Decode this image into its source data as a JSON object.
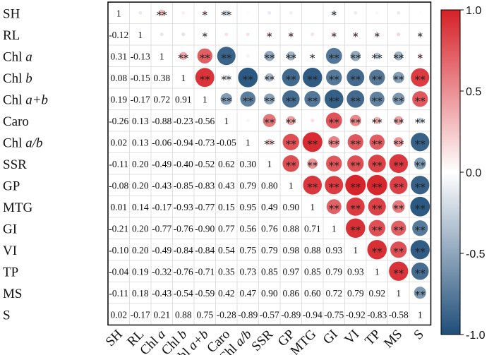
{
  "chart_data": {
    "type": "heatmap",
    "variables": [
      "SH",
      "RL",
      "Chl a",
      "Chl b",
      "Chl a+b",
      "Caro",
      "Chl a/b",
      "SSR",
      "GP",
      "MTG",
      "GI",
      "VI",
      "TP",
      "MS",
      "S"
    ],
    "row_labels": [
      "SH",
      "RL",
      "Chl a",
      "Chl b",
      "Chl a+b",
      "Caro",
      "Chl a/b",
      "SSR",
      "GP",
      "MTG",
      "GI",
      "VI",
      "TP",
      "MS",
      "S"
    ],
    "col_labels": [
      "SH",
      "RL",
      "Chl a",
      "Chl b",
      "Chl a+b",
      "Caro",
      "Chl a/b",
      "SSR",
      "GP",
      "MTG",
      "GI",
      "VI",
      "TP",
      "MS",
      "S"
    ],
    "lower_text": [
      [
        "1",
        "",
        "",
        "",
        "",
        "",
        "",
        "",
        "",
        "",
        "",
        "",
        "",
        "",
        ""
      ],
      [
        "-0.12",
        "1",
        "",
        "",
        "",
        "",
        "",
        "",
        "",
        "",
        "",
        "",
        "",
        "",
        ""
      ],
      [
        "0.31",
        "-0.13",
        "1",
        "",
        "",
        "",
        "",
        "",
        "",
        "",
        "",
        "",
        "",
        "",
        ""
      ],
      [
        "0.08",
        "-0.15",
        "0.38",
        "1",
        "",
        "",
        "",
        "",
        "",
        "",
        "",
        "",
        "",
        "",
        ""
      ],
      [
        "0.19",
        "-0.17",
        "0.72",
        "0.91",
        "1",
        "",
        "",
        "",
        "",
        "",
        "",
        "",
        "",
        "",
        ""
      ],
      [
        "-0.26",
        "0.13",
        "-0.88",
        "-0.23",
        "-0.56",
        "1",
        "",
        "",
        "",
        "",
        "",
        "",
        "",
        "",
        ""
      ],
      [
        "0.02",
        "0.13",
        "-0.06",
        "-0.94",
        "-0.73",
        "-0.05",
        "1",
        "",
        "",
        "",
        "",
        "",
        "",
        "",
        ""
      ],
      [
        "-0.11",
        "0.20",
        "-0.49",
        "-0.40",
        "-0.52",
        "0.62",
        "0.30",
        "1",
        "",
        "",
        "",
        "",
        "",
        "",
        ""
      ],
      [
        "-0.08",
        "0.20",
        "-0.43",
        "-0.85",
        "-0.83",
        "0.43",
        "0.79",
        "0.80",
        "1",
        "",
        "",
        "",
        "",
        "",
        ""
      ],
      [
        "0.01",
        "0.14",
        "-0.17",
        "-0.93",
        "-0.77",
        "0.15",
        "0.95",
        "0.49",
        "0.90",
        "1",
        "",
        "",
        "",
        "",
        ""
      ],
      [
        "-0.21",
        "0.20",
        "-0.77",
        "-0.76",
        "-0.90",
        "0.77",
        "0.56",
        "0.76",
        "0.88",
        "0.71",
        "1",
        "",
        "",
        "",
        ""
      ],
      [
        "-0.10",
        "0.20",
        "-0.49",
        "-0.84",
        "-0.84",
        "0.54",
        "0.75",
        "0.79",
        "0.98",
        "0.88",
        "0.93",
        "1",
        "",
        "",
        ""
      ],
      [
        "-0.04",
        "0.19",
        "-0.32",
        "-0.76",
        "-0.71",
        "0.35",
        "0.73",
        "0.85",
        "0.97",
        "0.85",
        "0.79",
        "0.93",
        "1",
        "",
        ""
      ],
      [
        "-0.11",
        "0.18",
        "-0.43",
        "-0.54",
        "-0.59",
        "0.42",
        "0.47",
        "0.90",
        "0.86",
        "0.60",
        "0.72",
        "0.79",
        "0.92",
        "1",
        ""
      ],
      [
        "0.02",
        "-0.17",
        "0.21",
        "0.88",
        "0.75",
        "-0.28",
        "-0.89",
        "-0.57",
        "-0.89",
        "-0.94",
        "-0.75",
        "-0.92",
        "-0.83",
        "-0.58",
        "1"
      ]
    ],
    "upper_stars": [
      [
        "",
        "",
        "**",
        "",
        "*",
        "**",
        "",
        "",
        "",
        "",
        "*",
        "",
        "",
        "",
        ""
      ],
      [
        "",
        "",
        "",
        "",
        "*",
        "",
        "",
        "*",
        "*",
        "",
        "*",
        "*",
        "*",
        "",
        "*"
      ],
      [
        "",
        "",
        "",
        "**",
        "**",
        "**",
        "",
        "**",
        "**",
        "*",
        "**",
        "**",
        "**",
        "**",
        "*"
      ],
      [
        "",
        "",
        "",
        "",
        "**",
        "**",
        "**",
        "**",
        "**",
        "**",
        "**",
        "**",
        "**",
        "**",
        "**"
      ],
      [
        "",
        "",
        "",
        "",
        "",
        "**",
        "**",
        "**",
        "**",
        "**",
        "**",
        "**",
        "**",
        "**",
        "**"
      ],
      [
        "",
        "",
        "",
        "",
        "",
        "",
        "",
        "**",
        "**",
        "",
        "**",
        "**",
        "**",
        "**",
        "**"
      ],
      [
        "",
        "",
        "",
        "",
        "",
        "",
        "",
        "**",
        "**",
        "**",
        "**",
        "**",
        "**",
        "**",
        "**"
      ],
      [
        "",
        "",
        "",
        "",
        "",
        "",
        "",
        "",
        "**",
        "**",
        "**",
        "**",
        "**",
        "**",
        "**"
      ],
      [
        "",
        "",
        "",
        "",
        "",
        "",
        "",
        "",
        "",
        "**",
        "**",
        "**",
        "**",
        "**",
        "**"
      ],
      [
        "",
        "",
        "",
        "",
        "",
        "",
        "",
        "",
        "",
        "",
        "**",
        "**",
        "**",
        "**",
        "**"
      ],
      [
        "",
        "",
        "",
        "",
        "",
        "",
        "",
        "",
        "",
        "",
        "",
        "**",
        "**",
        "**",
        "**"
      ],
      [
        "",
        "",
        "",
        "",
        "",
        "",
        "",
        "",
        "",
        "",
        "",
        "",
        "**",
        "**",
        "**"
      ],
      [
        "",
        "",
        "",
        "",
        "",
        "",
        "",
        "",
        "",
        "",
        "",
        "",
        "",
        "**",
        "**"
      ],
      [
        "",
        "",
        "",
        "",
        "",
        "",
        "",
        "",
        "",
        "",
        "",
        "",
        "",
        "",
        "**"
      ],
      [
        "",
        "",
        "",
        "",
        "",
        "",
        "",
        "",
        "",
        "",
        "",
        "",
        "",
        "",
        ""
      ]
    ],
    "colorbar": {
      "range": [
        -1.0,
        1.0
      ],
      "tick_labels": [
        "1.0",
        "0.5",
        "0.0",
        "-0.5",
        "-1.0"
      ],
      "tick_values": [
        1.0,
        0.5,
        0.0,
        -0.5,
        -1.0
      ],
      "colors": {
        "negative": "#1f4e79",
        "neutral": "#ffffff",
        "positive": "#d62027"
      }
    },
    "grid": true
  }
}
